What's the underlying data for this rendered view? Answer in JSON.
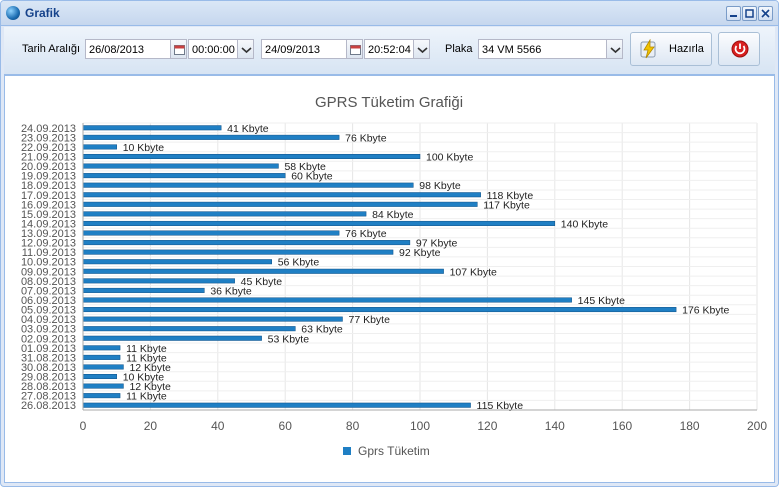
{
  "window": {
    "title": "Grafik"
  },
  "toolbar": {
    "date_range_label": "Tarih Aralığı",
    "start_date": "26/08/2013",
    "start_time": "00:00:00",
    "end_date": "24/09/2013",
    "end_time": "20:52:04",
    "plate_label": "Plaka",
    "plate_value": "34 VM 5566",
    "prepare_label": "Hazırla"
  },
  "colors": {
    "bar": "#1f7fc4",
    "accent": "#15428b",
    "grid": "#e6e6e6"
  },
  "chart_data": {
    "type": "bar",
    "orientation": "horizontal",
    "title": "GPRS Tüketim Grafiği",
    "legend": {
      "position": "bottom",
      "entries": [
        "Gprs Tüketim"
      ]
    },
    "xlim": [
      0,
      200
    ],
    "xticks": [
      0,
      20,
      40,
      60,
      80,
      100,
      120,
      140,
      160,
      180,
      200
    ],
    "grid": true,
    "unit_suffix": " Kbyte",
    "series": [
      {
        "name": "Gprs Tüketim",
        "points": [
          {
            "date": "24.09.2013",
            "value": 41
          },
          {
            "date": "23.09.2013",
            "value": 76
          },
          {
            "date": "22.09.2013",
            "value": 10
          },
          {
            "date": "21.09.2013",
            "value": 100
          },
          {
            "date": "20.09.2013",
            "value": 58
          },
          {
            "date": "19.09.2013",
            "value": 60
          },
          {
            "date": "18.09.2013",
            "value": 98
          },
          {
            "date": "17.09.2013",
            "value": 118
          },
          {
            "date": "16.09.2013",
            "value": 117
          },
          {
            "date": "15.09.2013",
            "value": 84
          },
          {
            "date": "14.09.2013",
            "value": 140
          },
          {
            "date": "13.09.2013",
            "value": 76
          },
          {
            "date": "12.09.2013",
            "value": 97
          },
          {
            "date": "11.09.2013",
            "value": 92
          },
          {
            "date": "10.09.2013",
            "value": 56
          },
          {
            "date": "09.09.2013",
            "value": 107
          },
          {
            "date": "08.09.2013",
            "value": 45
          },
          {
            "date": "07.09.2013",
            "value": 36
          },
          {
            "date": "06.09.2013",
            "value": 145
          },
          {
            "date": "05.09.2013",
            "value": 176
          },
          {
            "date": "04.09.2013",
            "value": 77
          },
          {
            "date": "03.09.2013",
            "value": 63
          },
          {
            "date": "02.09.2013",
            "value": 53
          },
          {
            "date": "01.09.2013",
            "value": 11
          },
          {
            "date": "31.08.2013",
            "value": 11
          },
          {
            "date": "30.08.2013",
            "value": 12
          },
          {
            "date": "29.08.2013",
            "value": 10
          },
          {
            "date": "28.08.2013",
            "value": 12
          },
          {
            "date": "27.08.2013",
            "value": 11
          },
          {
            "date": "26.08.2013",
            "value": 115
          }
        ]
      }
    ]
  }
}
